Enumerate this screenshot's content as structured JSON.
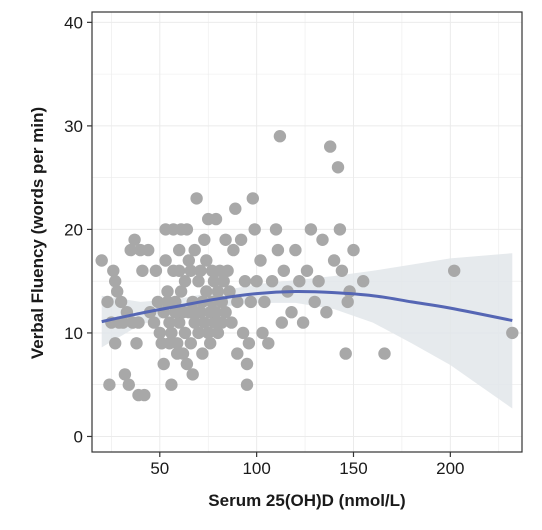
{
  "chart_data": {
    "type": "scatter",
    "title": "",
    "xlabel": "Serum 25(OH)D (nmol/L)",
    "ylabel": "Verbal Fluency (words per min)",
    "xlim": [
      15,
      237
    ],
    "ylim": [
      -1.5,
      41
    ],
    "x_ticks": [
      50,
      100,
      150,
      200
    ],
    "y_ticks": [
      0,
      10,
      20,
      30,
      40
    ],
    "grid": true,
    "legend": "none",
    "colors": {
      "points": "#a8a8a8",
      "fit_line": "#5566b4",
      "confidence_band": "#e2e6ea",
      "panel_border": "#333333",
      "grid": "#ebebeb"
    },
    "points": [
      {
        "x": 20,
        "y": 17
      },
      {
        "x": 23,
        "y": 13
      },
      {
        "x": 24,
        "y": 5
      },
      {
        "x": 25,
        "y": 11
      },
      {
        "x": 26,
        "y": 16
      },
      {
        "x": 27,
        "y": 15
      },
      {
        "x": 27,
        "y": 9
      },
      {
        "x": 28,
        "y": 14
      },
      {
        "x": 29,
        "y": 11
      },
      {
        "x": 30,
        "y": 13
      },
      {
        "x": 31,
        "y": 11
      },
      {
        "x": 32,
        "y": 6
      },
      {
        "x": 33,
        "y": 12
      },
      {
        "x": 34,
        "y": 5
      },
      {
        "x": 35,
        "y": 18
      },
      {
        "x": 36,
        "y": 11
      },
      {
        "x": 37,
        "y": 19
      },
      {
        "x": 38,
        "y": 9
      },
      {
        "x": 39,
        "y": 11
      },
      {
        "x": 39,
        "y": 4
      },
      {
        "x": 40,
        "y": 18
      },
      {
        "x": 41,
        "y": 16
      },
      {
        "x": 42,
        "y": 4
      },
      {
        "x": 44,
        "y": 18
      },
      {
        "x": 45,
        "y": 12
      },
      {
        "x": 47,
        "y": 11
      },
      {
        "x": 48,
        "y": 16
      },
      {
        "x": 49,
        "y": 13
      },
      {
        "x": 50,
        "y": 10
      },
      {
        "x": 51,
        "y": 9
      },
      {
        "x": 52,
        "y": 12
      },
      {
        "x": 52,
        "y": 7
      },
      {
        "x": 53,
        "y": 17
      },
      {
        "x": 53,
        "y": 20
      },
      {
        "x": 54,
        "y": 14
      },
      {
        "x": 54,
        "y": 13
      },
      {
        "x": 55,
        "y": 11
      },
      {
        "x": 55,
        "y": 9
      },
      {
        "x": 56,
        "y": 10
      },
      {
        "x": 56,
        "y": 5
      },
      {
        "x": 57,
        "y": 20
      },
      {
        "x": 57,
        "y": 16
      },
      {
        "x": 58,
        "y": 13
      },
      {
        "x": 58,
        "y": 12
      },
      {
        "x": 59,
        "y": 9
      },
      {
        "x": 59,
        "y": 8
      },
      {
        "x": 60,
        "y": 18
      },
      {
        "x": 60,
        "y": 16
      },
      {
        "x": 60,
        "y": 11
      },
      {
        "x": 61,
        "y": 14
      },
      {
        "x": 61,
        "y": 20
      },
      {
        "x": 62,
        "y": 12
      },
      {
        "x": 62,
        "y": 8
      },
      {
        "x": 63,
        "y": 15
      },
      {
        "x": 63,
        "y": 10
      },
      {
        "x": 64,
        "y": 7
      },
      {
        "x": 64,
        "y": 20
      },
      {
        "x": 65,
        "y": 17
      },
      {
        "x": 65,
        "y": 12
      },
      {
        "x": 66,
        "y": 9
      },
      {
        "x": 66,
        "y": 16
      },
      {
        "x": 67,
        "y": 13
      },
      {
        "x": 67,
        "y": 6
      },
      {
        "x": 68,
        "y": 11
      },
      {
        "x": 68,
        "y": 18
      },
      {
        "x": 69,
        "y": 23
      },
      {
        "x": 69,
        "y": 12
      },
      {
        "x": 70,
        "y": 15
      },
      {
        "x": 70,
        "y": 10
      },
      {
        "x": 71,
        "y": 16
      },
      {
        "x": 71,
        "y": 12
      },
      {
        "x": 72,
        "y": 13
      },
      {
        "x": 72,
        "y": 8
      },
      {
        "x": 73,
        "y": 19
      },
      {
        "x": 73,
        "y": 11
      },
      {
        "x": 74,
        "y": 17
      },
      {
        "x": 74,
        "y": 14
      },
      {
        "x": 75,
        "y": 10
      },
      {
        "x": 75,
        "y": 21
      },
      {
        "x": 76,
        "y": 12
      },
      {
        "x": 76,
        "y": 9
      },
      {
        "x": 77,
        "y": 16
      },
      {
        "x": 77,
        "y": 13
      },
      {
        "x": 78,
        "y": 11
      },
      {
        "x": 78,
        "y": 15
      },
      {
        "x": 79,
        "y": 21
      },
      {
        "x": 79,
        "y": 12
      },
      {
        "x": 80,
        "y": 14
      },
      {
        "x": 80,
        "y": 10
      },
      {
        "x": 81,
        "y": 16
      },
      {
        "x": 82,
        "y": 11
      },
      {
        "x": 82,
        "y": 13
      },
      {
        "x": 83,
        "y": 15
      },
      {
        "x": 84,
        "y": 19
      },
      {
        "x": 84,
        "y": 12
      },
      {
        "x": 85,
        "y": 16
      },
      {
        "x": 86,
        "y": 14
      },
      {
        "x": 87,
        "y": 11
      },
      {
        "x": 88,
        "y": 18
      },
      {
        "x": 89,
        "y": 22
      },
      {
        "x": 90,
        "y": 13
      },
      {
        "x": 90,
        "y": 8
      },
      {
        "x": 92,
        "y": 19
      },
      {
        "x": 93,
        "y": 10
      },
      {
        "x": 94,
        "y": 15
      },
      {
        "x": 95,
        "y": 5
      },
      {
        "x": 95,
        "y": 7
      },
      {
        "x": 96,
        "y": 9
      },
      {
        "x": 97,
        "y": 13
      },
      {
        "x": 98,
        "y": 23
      },
      {
        "x": 99,
        "y": 20
      },
      {
        "x": 100,
        "y": 15
      },
      {
        "x": 102,
        "y": 17
      },
      {
        "x": 103,
        "y": 10
      },
      {
        "x": 104,
        "y": 13
      },
      {
        "x": 106,
        "y": 9
      },
      {
        "x": 108,
        "y": 15
      },
      {
        "x": 110,
        "y": 20
      },
      {
        "x": 111,
        "y": 18
      },
      {
        "x": 112,
        "y": 29
      },
      {
        "x": 113,
        "y": 11
      },
      {
        "x": 114,
        "y": 16
      },
      {
        "x": 116,
        "y": 14
      },
      {
        "x": 118,
        "y": 12
      },
      {
        "x": 120,
        "y": 18
      },
      {
        "x": 122,
        "y": 15
      },
      {
        "x": 124,
        "y": 11
      },
      {
        "x": 126,
        "y": 16
      },
      {
        "x": 128,
        "y": 20
      },
      {
        "x": 130,
        "y": 13
      },
      {
        "x": 132,
        "y": 15
      },
      {
        "x": 134,
        "y": 19
      },
      {
        "x": 136,
        "y": 12
      },
      {
        "x": 138,
        "y": 28
      },
      {
        "x": 140,
        "y": 17
      },
      {
        "x": 142,
        "y": 26
      },
      {
        "x": 143,
        "y": 20
      },
      {
        "x": 144,
        "y": 16
      },
      {
        "x": 146,
        "y": 8
      },
      {
        "x": 147,
        "y": 13
      },
      {
        "x": 148,
        "y": 14
      },
      {
        "x": 150,
        "y": 18
      },
      {
        "x": 155,
        "y": 15
      },
      {
        "x": 166,
        "y": 8
      },
      {
        "x": 202,
        "y": 16
      },
      {
        "x": 232,
        "y": 10
      }
    ],
    "fit": {
      "x": [
        20,
        40,
        60,
        80,
        100,
        120,
        140,
        160,
        180,
        200,
        232
      ],
      "y": [
        11.1,
        11.9,
        12.6,
        13.3,
        13.8,
        14.0,
        13.9,
        13.6,
        13.0,
        12.4,
        11.2
      ],
      "lower": [
        8.6,
        10.8,
        11.9,
        12.5,
        12.9,
        12.9,
        12.3,
        11.0,
        9.0,
        6.9,
        2.7
      ],
      "upper": [
        13.6,
        13.0,
        13.3,
        14.0,
        14.7,
        15.1,
        15.5,
        16.0,
        16.6,
        17.2,
        17.7
      ]
    }
  }
}
